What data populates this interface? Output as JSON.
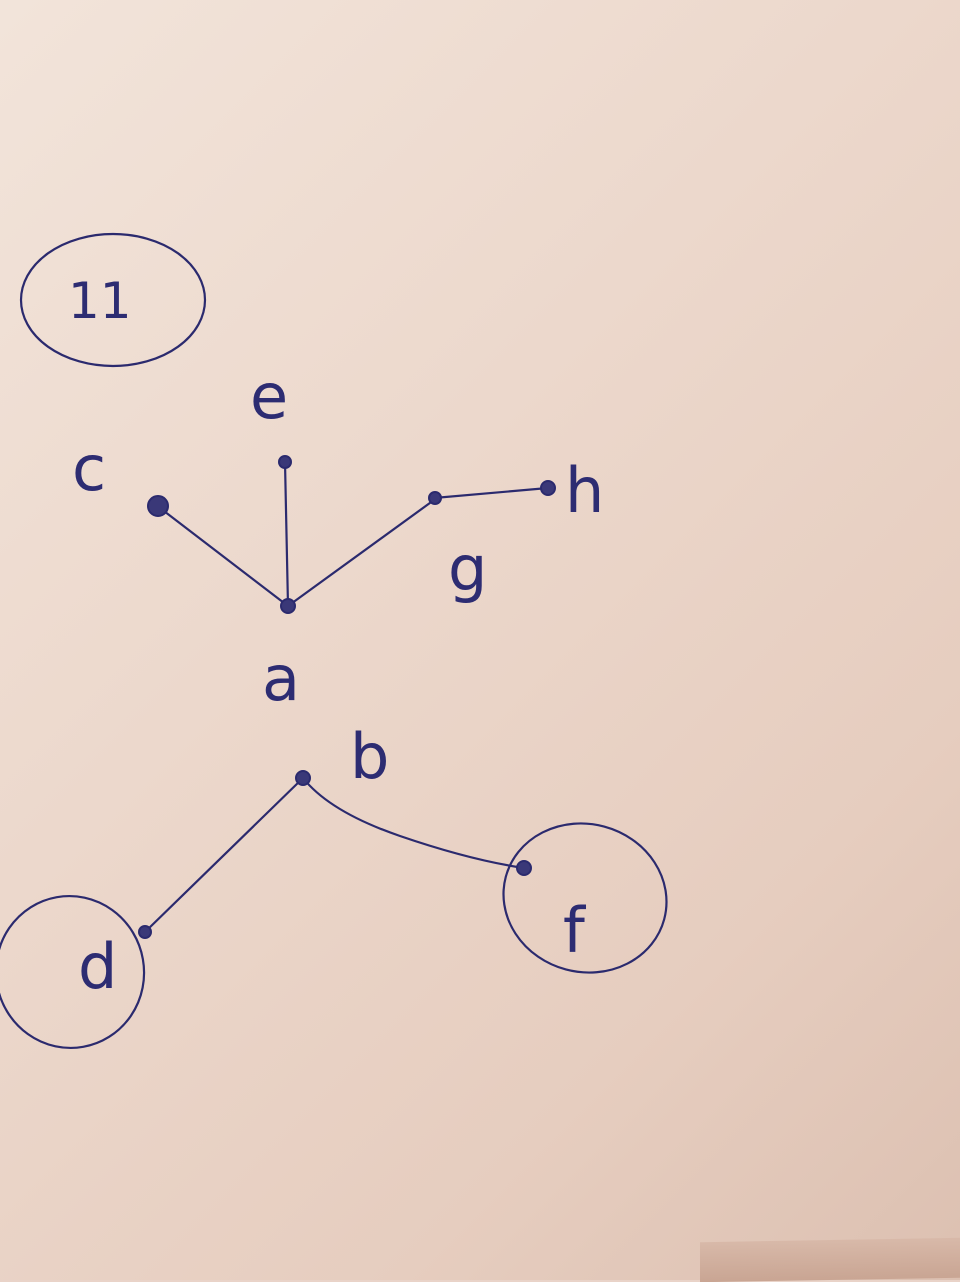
{
  "figure_number": "11",
  "upper_tree": {
    "root": "a",
    "nodes": [
      "a",
      "c",
      "e",
      "g",
      "h"
    ],
    "edges": [
      [
        "a",
        "c"
      ],
      [
        "a",
        "e"
      ],
      [
        "a",
        "g"
      ],
      [
        "g",
        "h"
      ]
    ]
  },
  "lower_tree": {
    "root": "b",
    "nodes": [
      "b",
      "d",
      "f"
    ],
    "edges": [
      [
        "b",
        "d"
      ],
      [
        "b",
        "f"
      ]
    ],
    "circled_nodes": [
      "d",
      "f"
    ]
  },
  "labels": {
    "a": "a",
    "b": "b",
    "c": "c",
    "d": "d",
    "e": "e",
    "f": "f",
    "g": "g",
    "h": "h"
  },
  "ink_color": "#2b2a6e",
  "paper_color": "#ecd8cc"
}
